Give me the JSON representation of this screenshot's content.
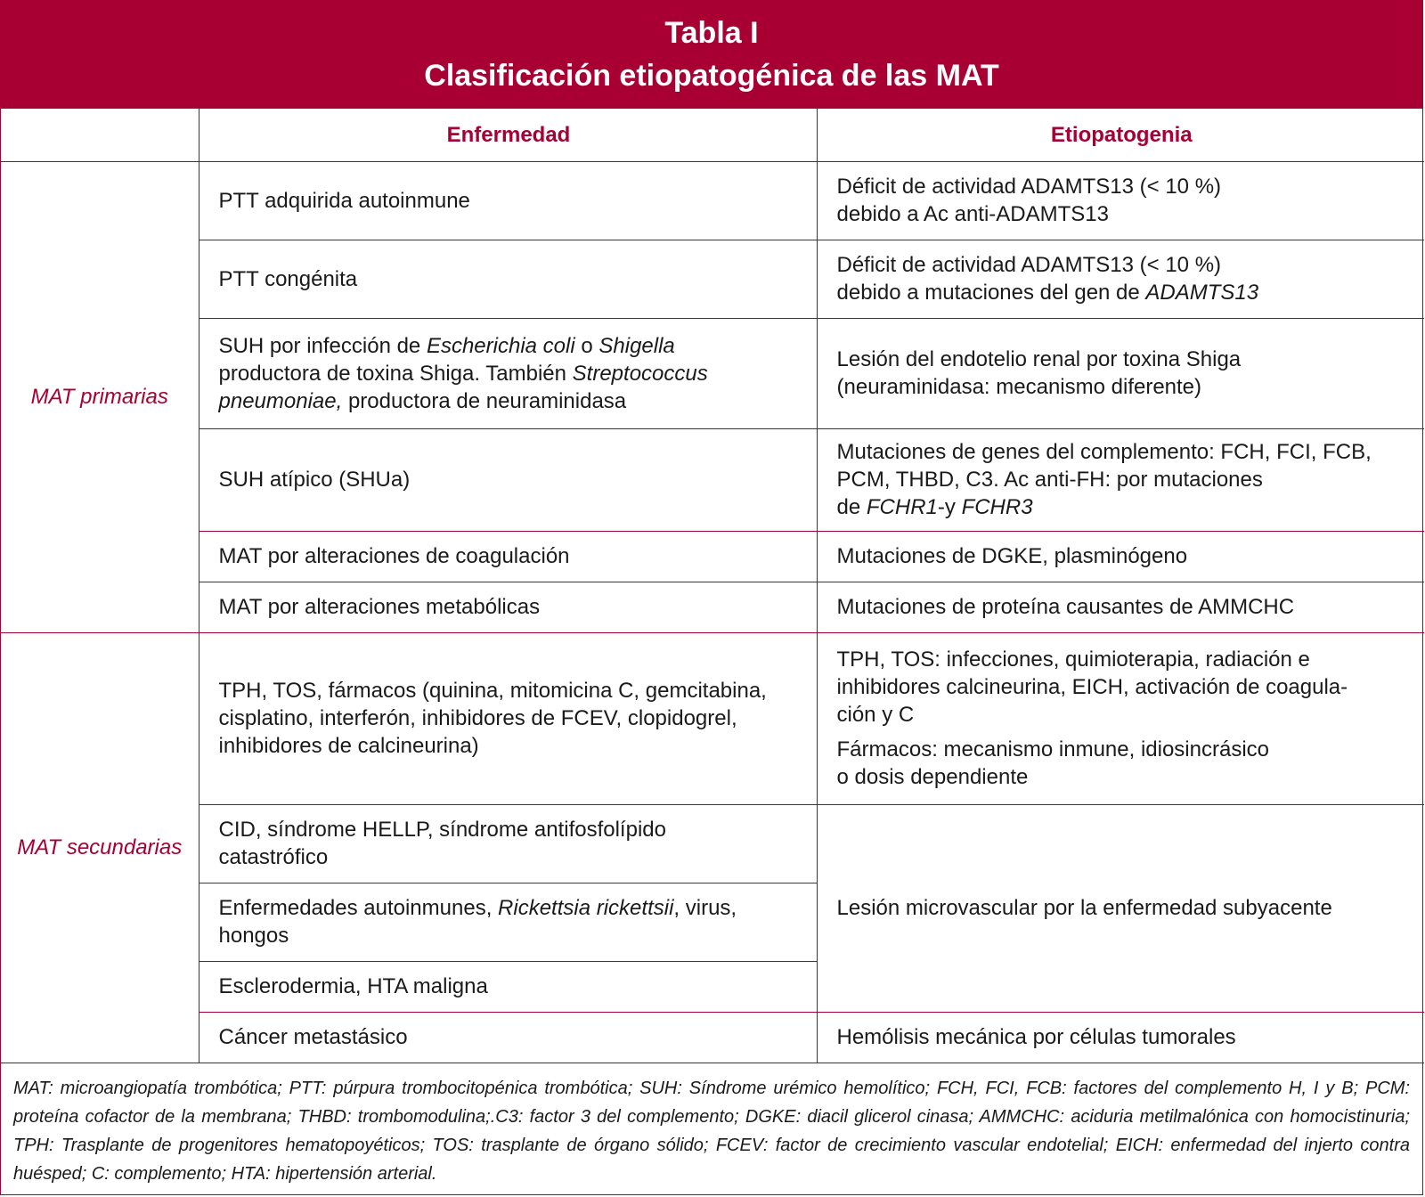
{
  "title": "Tabla I",
  "subtitle": "Clasificación etiopatogénica de las MAT",
  "columns": {
    "enfermedad": "Enfermedad",
    "etiopatogenia": "Etiopatogenia"
  },
  "groups": {
    "primarias": "MAT primarias",
    "secundarias": "MAT secundarias"
  },
  "rows": [
    {
      "enf": [
        [
          {
            "t": "PTT adquirida autoinmune"
          }
        ]
      ],
      "eti": [
        [
          {
            "t": "Déficit de actividad ADAMTS13 (< 10 %)"
          }
        ],
        [
          {
            "t": "debido a Ac anti-ADAMTS13"
          }
        ]
      ]
    },
    {
      "enf": [
        [
          {
            "t": "PTT congénita"
          }
        ]
      ],
      "eti": [
        [
          {
            "t": "Déficit de actividad ADAMTS13 (< 10 %)"
          }
        ],
        [
          {
            "t": "debido a mutaciones del gen de "
          },
          {
            "t": "ADAMTS13",
            "i": true
          }
        ]
      ]
    },
    {
      "enf": [
        [
          {
            "t": "SUH por infección de "
          },
          {
            "t": "Escherichia coli",
            "i": true
          },
          {
            "t": " o "
          },
          {
            "t": "Shigella",
            "i": true
          }
        ],
        [
          {
            "t": "productora de toxina Shiga. También "
          },
          {
            "t": "Streptococcus",
            "i": true
          }
        ],
        [
          {
            "t": "pneumoniae,",
            "i": true
          },
          {
            "t": " productora de neuraminidasa"
          }
        ]
      ],
      "eti": [
        [
          {
            "t": "Lesión del endotelio renal por toxina Shiga"
          }
        ],
        [
          {
            "t": "(neuraminidasa: mecanismo diferente)"
          }
        ]
      ]
    },
    {
      "enf": [
        [
          {
            "t": "SUH atípico (SHUa)"
          }
        ]
      ],
      "eti": [
        [
          {
            "t": "Mutaciones de genes del complemento: FCH, FCI, FCB,"
          }
        ],
        [
          {
            "t": "PCM, THBD, C3. Ac anti-FH: por mutaciones"
          }
        ],
        [
          {
            "t": "de "
          },
          {
            "t": "FCHR1",
            "i": true
          },
          {
            "t": "-y "
          },
          {
            "t": "FCHR3",
            "i": true
          }
        ]
      ]
    },
    {
      "enf": [
        [
          {
            "t": "MAT por alteraciones de coagulación"
          }
        ]
      ],
      "eti": [
        [
          {
            "t": "Mutaciones de DGKE, plasminógeno"
          }
        ]
      ]
    },
    {
      "enf": [
        [
          {
            "t": "MAT por alteraciones metabólicas"
          }
        ]
      ],
      "eti": [
        [
          {
            "t": "Mutaciones de proteína causantes de AMMCHC"
          }
        ]
      ]
    },
    {
      "enf": [
        [
          {
            "t": "TPH, TOS, fármacos (quinina, mitomicina C, gemcitabina,"
          }
        ],
        [
          {
            "t": "cisplatino, interferón, inhibidores de FCEV, clopidogrel,"
          }
        ],
        [
          {
            "t": "inhibidores de calcineurina)"
          }
        ]
      ],
      "eti": [
        [
          {
            "t": "TPH, TOS: infecciones, quimioterapia, radiación e"
          }
        ],
        [
          {
            "t": "inhibidores calcineurina, EICH, activación de coagula-"
          }
        ],
        [
          {
            "t": "ción y C"
          }
        ],
        [],
        [
          {
            "t": "Fármacos: mecanismo inmune, idiosincrásico"
          }
        ],
        [
          {
            "t": "o dosis dependiente"
          }
        ]
      ]
    },
    {
      "enf": [
        [
          {
            "t": "CID, síndrome HELLP, síndrome antifosfolípido"
          }
        ],
        [
          {
            "t": "catastrófico"
          }
        ]
      ],
      "eti": [
        [
          {
            "t": "Lesión microvascular por la enfermedad subyacente"
          }
        ]
      ]
    },
    {
      "enf": [
        [
          {
            "t": "Enfermedades autoinmunes, "
          },
          {
            "t": "Rickettsia rickettsii",
            "i": true
          },
          {
            "t": ", virus,"
          }
        ],
        [
          {
            "t": "hongos"
          }
        ]
      ]
    },
    {
      "enf": [
        [
          {
            "t": "Esclerodermia, HTA maligna"
          }
        ]
      ]
    },
    {
      "enf": [
        [
          {
            "t": "Cáncer metastásico"
          }
        ]
      ],
      "eti": [
        [
          {
            "t": "Hemólisis mecánica por células tumorales"
          }
        ]
      ]
    }
  ],
  "footnote": "MAT: microangiopatía trombótica; PTT: púrpura trombocitopénica trombótica; SUH: Síndrome urémico hemolítico; FCH, FCI, FCB: factores del complemento H, I y B; PCM: proteína cofactor de la membrana; THBD: trombomodulina;.C3: factor 3 del complemento; DGKE: diacil glicerol cinasa; AMMCHC: aciduria metilmalónica con homocistinuria; TPH: Trasplante de progenitores hematopoyéticos; TOS: trasplante de órgano sólido; FCEV: factor de crecimiento vascular endotelial; EICH: enfermedad del injerto contra huésped; C: complemento; HTA: hipertensión arterial.",
  "colors": {
    "accent": "#a80032"
  }
}
